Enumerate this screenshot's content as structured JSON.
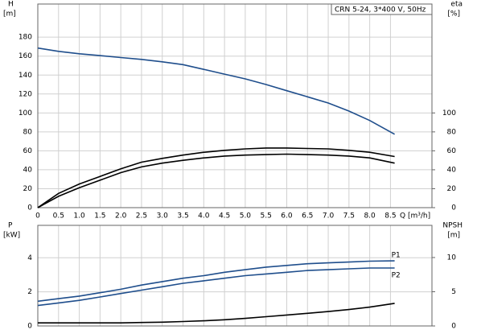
{
  "chart_data": [
    {
      "type": "line",
      "title": "CRN 5-24, 3*400 V, 50Hz",
      "ylabel": "H",
      "yunit": "[m]",
      "y2label": "eta",
      "y2unit": "[%]",
      "xlabel": "Q [m³/h]",
      "x": [
        0,
        0.5,
        1,
        1.5,
        2,
        2.5,
        3,
        3.5,
        4,
        4.5,
        5,
        5.5,
        6,
        6.5,
        7,
        7.5,
        8,
        8.6
      ],
      "xlim": [
        0,
        9.5
      ],
      "xticks": [
        0,
        0.5,
        {
          "value": 1,
          "label": "1.0"
        },
        1.5,
        {
          "value": 2,
          "label": "2.0"
        },
        2.5,
        {
          "value": 3,
          "label": "3.0"
        },
        3.5,
        {
          "value": 4,
          "label": "4.0"
        },
        4.5,
        {
          "value": 5,
          "label": "5.0"
        },
        5.5,
        {
          "value": 6,
          "label": "6.0"
        },
        6.5,
        {
          "value": 7,
          "label": "7.0"
        },
        7.5,
        {
          "value": 8,
          "label": "8.0"
        },
        8.5
      ],
      "ylim": [
        0,
        215
      ],
      "yticks": [
        0,
        20,
        40,
        60,
        80,
        100,
        120,
        140,
        160,
        180
      ],
      "y2lim": [
        0,
        215
      ],
      "y2ticks": [
        0,
        20,
        40,
        60,
        80,
        100
      ],
      "grid": true,
      "series": [
        {
          "color": "#1f4e8c",
          "values": [
            168.5,
            165,
            162.5,
            160.5,
            158.5,
            156.5,
            154,
            151,
            146,
            141,
            136,
            130,
            123.5,
            117,
            110.5,
            102,
            92,
            77.5
          ]
        },
        {
          "color": "#000000",
          "axis": "y2",
          "values": [
            0,
            15,
            25,
            33,
            41,
            48,
            52,
            55.5,
            58.5,
            60.5,
            62,
            63,
            63,
            62.5,
            62,
            60.5,
            58.5,
            54
          ]
        },
        {
          "color": "#000000",
          "axis": "y2",
          "values": [
            0,
            12,
            21,
            29,
            37,
            43,
            47,
            50,
            52.5,
            54.5,
            55.5,
            56,
            56.5,
            56,
            55.5,
            54.5,
            52.5,
            47
          ]
        }
      ]
    },
    {
      "type": "line",
      "ylabel": "P",
      "yunit": "[kW]",
      "y2label": "NPSH",
      "y2unit": "[m]",
      "x": [
        0,
        0.5,
        1,
        1.5,
        2,
        2.5,
        3,
        3.5,
        4,
        4.5,
        5,
        5.5,
        6,
        6.5,
        7,
        7.5,
        8,
        8.6
      ],
      "xlim": [
        0,
        9.5
      ],
      "ylim": [
        0,
        5.9
      ],
      "yticks": [
        0,
        2,
        4
      ],
      "y2lim": [
        0,
        14.7
      ],
      "y2ticks": [
        0,
        5,
        10
      ],
      "grid": true,
      "series": [
        {
          "name": "P1",
          "color": "#1f4e8c",
          "values": [
            1.45,
            1.6,
            1.75,
            1.95,
            2.15,
            2.4,
            2.6,
            2.8,
            2.95,
            3.15,
            3.3,
            3.45,
            3.55,
            3.65,
            3.7,
            3.75,
            3.8,
            3.82
          ]
        },
        {
          "name": "P2",
          "color": "#1f4e8c",
          "values": [
            1.2,
            1.35,
            1.5,
            1.7,
            1.9,
            2.1,
            2.3,
            2.5,
            2.65,
            2.8,
            2.95,
            3.05,
            3.15,
            3.25,
            3.3,
            3.35,
            3.4,
            3.4
          ]
        },
        {
          "color": "#000000",
          "axis": "y2",
          "values": [
            0.45,
            0.45,
            0.45,
            0.45,
            0.45,
            0.5,
            0.55,
            0.65,
            0.75,
            0.9,
            1.1,
            1.35,
            1.6,
            1.85,
            2.1,
            2.4,
            2.75,
            3.3
          ]
        }
      ]
    }
  ]
}
